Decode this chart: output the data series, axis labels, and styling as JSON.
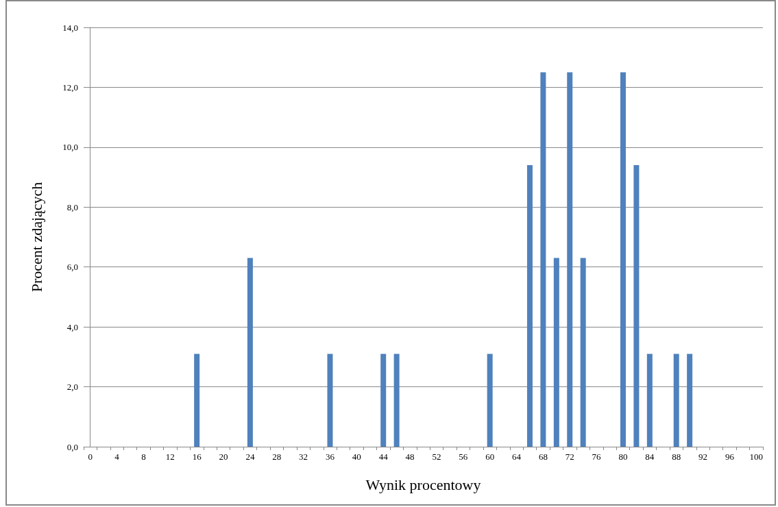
{
  "chart_data": {
    "type": "bar",
    "xlabel": "Wynik procentowy",
    "ylabel": "Procent zdających",
    "x": [
      0,
      2,
      4,
      6,
      8,
      10,
      12,
      14,
      16,
      18,
      20,
      22,
      24,
      26,
      28,
      30,
      32,
      34,
      36,
      38,
      40,
      42,
      44,
      46,
      48,
      50,
      52,
      54,
      56,
      58,
      60,
      62,
      64,
      66,
      68,
      70,
      72,
      74,
      76,
      78,
      80,
      82,
      84,
      86,
      88,
      90,
      92,
      94,
      96,
      98,
      100
    ],
    "values": [
      0,
      0,
      0,
      0,
      0,
      0,
      0,
      0,
      3.1,
      0,
      0,
      0,
      6.3,
      0,
      0,
      0,
      0,
      0,
      3.1,
      0,
      0,
      0,
      3.1,
      3.1,
      0,
      0,
      0,
      0,
      0,
      0,
      3.1,
      0,
      0,
      9.4,
      12.5,
      6.3,
      12.5,
      6.3,
      0,
      0,
      12.5,
      9.4,
      3.1,
      0,
      3.1,
      3.1,
      0,
      0,
      0,
      0,
      0
    ],
    "color": "#4f81bd",
    "xlim": [
      -1,
      101
    ],
    "xticks": [
      0,
      4,
      8,
      12,
      16,
      20,
      24,
      28,
      32,
      36,
      40,
      44,
      48,
      52,
      56,
      60,
      64,
      68,
      72,
      76,
      80,
      84,
      88,
      92,
      96,
      100,
      {
        "value": -1,
        "label": null
      },
      {
        "value": 1,
        "label": null
      },
      {
        "value": 3,
        "label": null
      },
      {
        "value": 5,
        "label": null
      },
      {
        "value": 7,
        "label": null
      },
      {
        "value": 9,
        "label": null
      },
      {
        "value": 11,
        "label": null
      },
      {
        "value": 13,
        "label": null
      },
      {
        "value": 15,
        "label": null
      },
      {
        "value": 17,
        "label": null
      },
      {
        "value": 19,
        "label": null
      },
      {
        "value": 21,
        "label": null
      },
      {
        "value": 23,
        "label": null
      },
      {
        "value": 25,
        "label": null
      },
      {
        "value": 27,
        "label": null
      },
      {
        "value": 29,
        "label": null
      },
      {
        "value": 31,
        "label": null
      },
      {
        "value": 33,
        "label": null
      },
      {
        "value": 35,
        "label": null
      },
      {
        "value": 37,
        "label": null
      },
      {
        "value": 39,
        "label": null
      },
      {
        "value": 41,
        "label": null
      },
      {
        "value": 43,
        "label": null
      },
      {
        "value": 45,
        "label": null
      },
      {
        "value": 47,
        "label": null
      },
      {
        "value": 49,
        "label": null
      },
      {
        "value": 51,
        "label": null
      },
      {
        "value": 53,
        "label": null
      },
      {
        "value": 55,
        "label": null
      },
      {
        "value": 57,
        "label": null
      },
      {
        "value": 59,
        "label": null
      },
      {
        "value": 61,
        "label": null
      },
      {
        "value": 63,
        "label": null
      },
      {
        "value": 65,
        "label": null
      },
      {
        "value": 67,
        "label": null
      },
      {
        "value": 69,
        "label": null
      },
      {
        "value": 71,
        "label": null
      },
      {
        "value": 73,
        "label": null
      },
      {
        "value": 75,
        "label": null
      },
      {
        "value": 77,
        "label": null
      },
      {
        "value": 79,
        "label": null
      },
      {
        "value": 81,
        "label": null
      },
      {
        "value": 83,
        "label": null
      },
      {
        "value": 85,
        "label": null
      },
      {
        "value": 87,
        "label": null
      },
      {
        "value": 89,
        "label": null
      },
      {
        "value": 91,
        "label": null
      },
      {
        "value": 93,
        "label": null
      },
      {
        "value": 95,
        "label": null
      },
      {
        "value": 97,
        "label": null
      },
      {
        "value": 99,
        "label": null
      },
      {
        "value": 101,
        "label": null
      }
    ],
    "ylim": [
      0,
      14
    ],
    "yticks": [
      {
        "value": 0,
        "label": "0,0"
      },
      {
        "value": 2,
        "label": "2,0"
      },
      {
        "value": 4,
        "label": "4,0"
      },
      {
        "value": 6,
        "label": "6,0"
      },
      {
        "value": 8,
        "label": "8,0"
      },
      {
        "value": 10,
        "label": "10,0"
      },
      {
        "value": 12,
        "label": "12,0"
      },
      {
        "value": 14,
        "label": "14,0"
      }
    ],
    "grid": "y"
  }
}
